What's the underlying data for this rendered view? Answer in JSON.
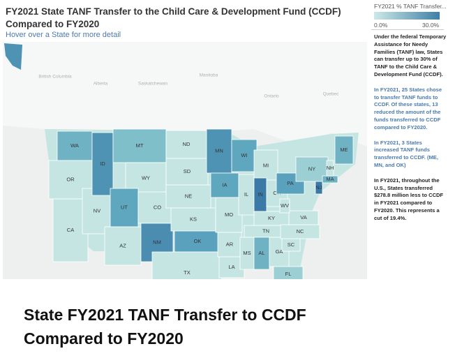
{
  "header": {
    "title": "FY2021 State TANF Transfer to the Child Care & Development Fund (CCDF) Compared to FY2020",
    "subtitle": "Hover over a State for more detail"
  },
  "legend": {
    "title": "FY2021 % TANF Transfer...",
    "min": "0.0%",
    "max": "30.0%"
  },
  "sidebar": {
    "paragraphs": [
      "Under the federal Temporary Assistance for Needy Families (TANF) law, States can transfer up to 30% of TANF to the Child Care & Development Fund (CCDF).",
      "In FY2021, 25 States chose to transfer TANF funds to CCDF. Of these states, 13 reduced the amount of the funds transferred to CCDF compared to FY2020.",
      "In FY2021, 3 States increased TANF funds transferred to CCDF. (ME, MN, and OK)",
      "In FY2021, throughout the U.S., States transferred $278.8 million less to CCDF in FY2021 compared to FY2020. This represents a cut of 19.4%."
    ]
  },
  "map": {
    "regions": [
      "British Columbia",
      "Alberta",
      "Saskatchewan",
      "Manitoba",
      "Ontario",
      "Quebec"
    ],
    "states": [
      {
        "label": "WA",
        "color": "#6fb2c4"
      },
      {
        "label": "OR",
        "color": "#c4e5e2"
      },
      {
        "label": "CA",
        "color": "#c4e5e2"
      },
      {
        "label": "NV",
        "color": "#c4e5e2"
      },
      {
        "label": "ID",
        "color": "#4f93b4"
      },
      {
        "label": "MT",
        "color": "#7fbfca"
      },
      {
        "label": "WY",
        "color": "#c4e5e2"
      },
      {
        "label": "UT",
        "color": "#5fa6bf"
      },
      {
        "label": "AZ",
        "color": "#c4e5e2"
      },
      {
        "label": "CO",
        "color": "#c4e5e2"
      },
      {
        "label": "NM",
        "color": "#4a8db1"
      },
      {
        "label": "ND",
        "color": "#c4e5e2"
      },
      {
        "label": "SD",
        "color": "#c4e5e2"
      },
      {
        "label": "NE",
        "color": "#c4e5e2"
      },
      {
        "label": "KS",
        "color": "#c4e5e2"
      },
      {
        "label": "OK",
        "color": "#5aa1bd"
      },
      {
        "label": "TX",
        "color": "#c4e5e2"
      },
      {
        "label": "MN",
        "color": "#4f93b4"
      },
      {
        "label": "IA",
        "color": "#5fa6bf"
      },
      {
        "label": "MO",
        "color": "#c4e5e2"
      },
      {
        "label": "AR",
        "color": "#c4e5e2"
      },
      {
        "label": "LA",
        "color": "#c4e5e2"
      },
      {
        "label": "WI",
        "color": "#5fa6bf"
      },
      {
        "label": "IL",
        "color": "#c4e5e2"
      },
      {
        "label": "MI",
        "color": "#c4e5e2"
      },
      {
        "label": "IN",
        "color": "#3b7aa6"
      },
      {
        "label": "OH",
        "color": "#c4e5e2"
      },
      {
        "label": "KY",
        "color": "#c4e5e2"
      },
      {
        "label": "TN",
        "color": "#c4e5e2"
      },
      {
        "label": "MS",
        "color": "#c4e5e2"
      },
      {
        "label": "AL",
        "color": "#6fb2c4"
      },
      {
        "label": "GA",
        "color": "#c4e5e2"
      },
      {
        "label": "FL",
        "color": "#9ccfd3"
      },
      {
        "label": "SC",
        "color": "#c4e5e2"
      },
      {
        "label": "NC",
        "color": "#c4e5e2"
      },
      {
        "label": "VA",
        "color": "#c4e5e2"
      },
      {
        "label": "WV",
        "color": "#c4e5e2"
      },
      {
        "label": "PA",
        "color": "#5aa1bd"
      },
      {
        "label": "NY",
        "color": "#9ccfd3"
      },
      {
        "label": "NJ",
        "color": "#3b7aa6"
      },
      {
        "label": "NH",
        "color": "#c4e5e2"
      },
      {
        "label": "MA",
        "color": "#6fb2c4"
      },
      {
        "label": "ME",
        "color": "#6fb2c4"
      }
    ]
  },
  "caption": {
    "lines": [
      "State FY2021 TANF Transfer to CCDF",
      "Compared to FY2020"
    ]
  }
}
